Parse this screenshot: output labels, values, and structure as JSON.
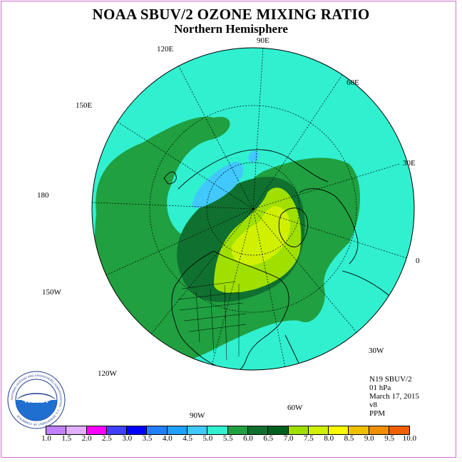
{
  "title": "NOAA SBUV/2 OZONE MIXING RATIO",
  "subtitle": "Northern Hemisphere",
  "longitude_labels": {
    "e90": "90E",
    "e60": "60E",
    "e30": "30E",
    "zero": "0",
    "w30": "30W",
    "w60": "60W",
    "w90": "90W",
    "w120": "120W",
    "w150": "150W",
    "d180": "180",
    "e150": "150E",
    "e120": "120E"
  },
  "info": {
    "satellite": "N19 SBUV/2",
    "level": "01 hPa",
    "date": "March 17, 2015",
    "version": "v8",
    "units": "PPM"
  },
  "logo": {
    "text": "NOAA",
    "ring_text": "NATIONAL OCEANIC AND ATMOSPHERIC ADMINISTRATION · U.S. DEPARTMENT OF COMMERCE"
  },
  "colorbar": {
    "ticks": [
      "1.0",
      "1.5",
      "2.0",
      "2.5",
      "3.0",
      "3.5",
      "4.0",
      "4.5",
      "5.0",
      "5.5",
      "6.0",
      "6.5",
      "7.0",
      "7.5",
      "8.0",
      "8.5",
      "9.0",
      "9.5",
      "10.0"
    ],
    "colors": [
      "#c080ff",
      "#e0b0ff",
      "#ff00ff",
      "#4040ff",
      "#0000ff",
      "#2080ff",
      "#20a0ff",
      "#40c8ff",
      "#30f0d0",
      "#20a040",
      "#107030",
      "#006020",
      "#a0e000",
      "#d0f000",
      "#f8f800",
      "#f0c000",
      "#f09000",
      "#f06000",
      "#f00000",
      "#a05030"
    ]
  },
  "colors": {
    "background": "#30f0d0",
    "blue_low": "#40c8ff",
    "green_55": "#20a040",
    "green_60": "#107030",
    "yellowgreen_65": "#a0e000",
    "yellow_70": "#d0f000"
  }
}
